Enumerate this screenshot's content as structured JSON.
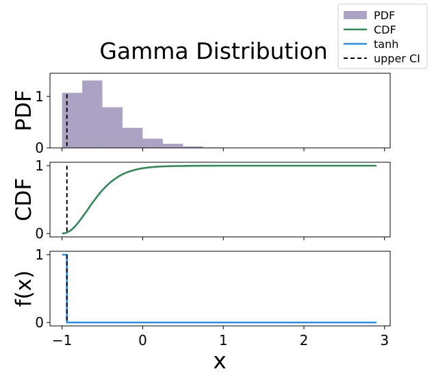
{
  "chart_data": {
    "title": "Gamma Distribution",
    "xlabel": "x",
    "xlim": [
      -1.15,
      3.07
    ],
    "x_ticks": [
      -1,
      0,
      1,
      2,
      3
    ],
    "x_tick_labels": [
      "−1",
      "0",
      "1",
      "2",
      "3"
    ],
    "legend_placement": "top-right",
    "legend": {
      "entries": [
        {
          "label": "PDF",
          "kind": "patch",
          "color": "#aca2c4"
        },
        {
          "label": "CDF",
          "kind": "line",
          "color": "#2e8b57"
        },
        {
          "label": "tanh",
          "kind": "line",
          "color": "#1e90ff"
        },
        {
          "label": "upper CI",
          "kind": "dashed",
          "color": "#000000"
        }
      ]
    },
    "upper_ci_x": -0.94,
    "panels": [
      {
        "id": "pdf",
        "type": "bar",
        "ylabel": "PDF",
        "ylim": [
          0,
          1.45
        ],
        "y_ticks": [
          0,
          1
        ],
        "color": "#aca2c4",
        "bin_edges": [
          -1.0,
          -0.75,
          -0.5,
          -0.25,
          0.0,
          0.25,
          0.5,
          0.75,
          1.0,
          1.25,
          1.5,
          1.75,
          2.0,
          2.25,
          2.5,
          2.75,
          3.0
        ],
        "values": [
          1.07,
          1.31,
          0.79,
          0.39,
          0.18,
          0.08,
          0.03,
          0.01,
          0.005,
          0.002,
          0,
          0,
          0,
          0,
          0,
          0
        ]
      },
      {
        "id": "cdf",
        "type": "line",
        "ylabel": "CDF",
        "ylim": [
          -0.05,
          1.05
        ],
        "y_ticks": [
          0,
          1
        ],
        "color": "#2e8b57",
        "x": [
          -1.0,
          -0.95,
          -0.9,
          -0.85,
          -0.8,
          -0.75,
          -0.7,
          -0.65,
          -0.6,
          -0.55,
          -0.5,
          -0.45,
          -0.4,
          -0.35,
          -0.3,
          -0.25,
          -0.2,
          -0.15,
          -0.1,
          -0.05,
          0.0,
          0.1,
          0.2,
          0.3,
          0.4,
          0.5,
          0.6,
          0.8,
          1.0,
          1.3,
          1.6,
          2.0,
          2.5,
          2.9
        ],
        "y": [
          0.0,
          0.01,
          0.04,
          0.09,
          0.16,
          0.24,
          0.32,
          0.41,
          0.49,
          0.57,
          0.64,
          0.7,
          0.755,
          0.8,
          0.84,
          0.873,
          0.9,
          0.92,
          0.937,
          0.951,
          0.962,
          0.977,
          0.986,
          0.991,
          0.994,
          0.996,
          0.998,
          0.999,
          0.9995,
          1.0,
          1.0,
          1.0,
          1.0,
          1.0
        ]
      },
      {
        "id": "tanh",
        "type": "line",
        "ylabel": "f(x)",
        "ylim": [
          -0.05,
          1.05
        ],
        "y_ticks": [
          0,
          1
        ],
        "color": "#1e90ff",
        "x": [
          -1.0,
          -0.94,
          -0.94,
          2.9
        ],
        "y": [
          1.0,
          1.0,
          0.0,
          0.0
        ]
      }
    ]
  }
}
